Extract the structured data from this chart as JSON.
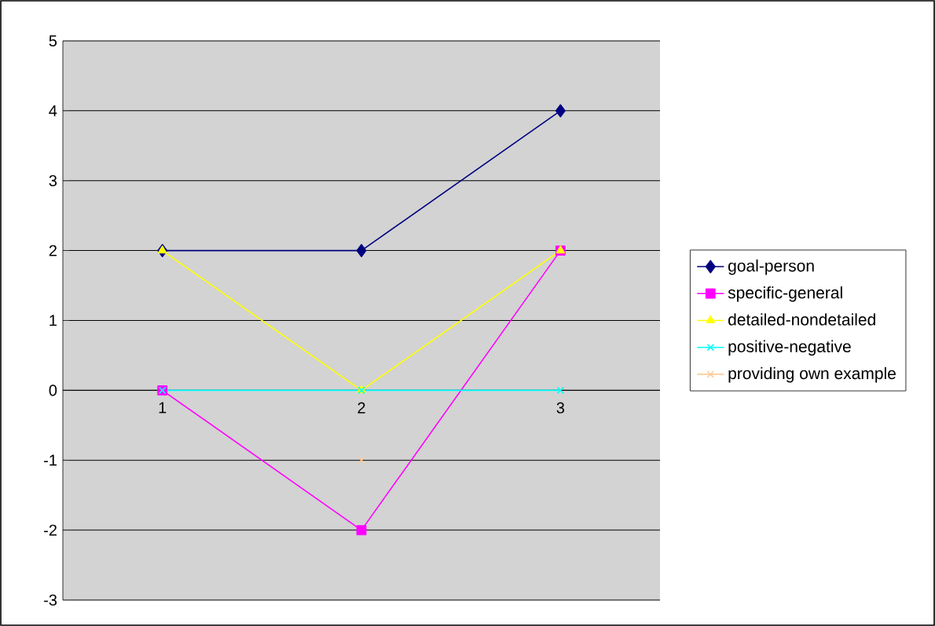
{
  "chart_data": {
    "type": "line",
    "categories": [
      "1",
      "2",
      "3"
    ],
    "series": [
      {
        "name": "goal-person",
        "color": "#000080",
        "marker": "diamond",
        "values": [
          2,
          2,
          4
        ]
      },
      {
        "name": "specific-general",
        "color": "#ff00ff",
        "marker": "square",
        "values": [
          0,
          -2,
          2
        ]
      },
      {
        "name": "detailed-nondetailed",
        "color": "#ffff00",
        "marker": "triangle",
        "values": [
          2,
          0,
          2
        ]
      },
      {
        "name": "positive-negative",
        "color": "#00ffff",
        "marker": "cross",
        "values": [
          0,
          0,
          0
        ]
      },
      {
        "name": "providing own example",
        "color": "#ffcc99",
        "marker": "cross",
        "values": [
          null,
          -1,
          null
        ]
      }
    ],
    "ylim": [
      -3,
      5
    ],
    "yticks": [
      -3,
      -2,
      -1,
      0,
      1,
      2,
      3,
      4,
      5
    ],
    "grid": "y",
    "legend": "right"
  }
}
